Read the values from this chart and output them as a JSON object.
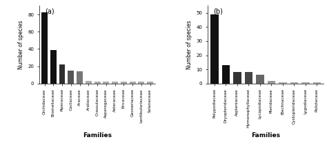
{
  "panel_a": {
    "label": "(a)",
    "categories": [
      "Orchidaceae",
      "Bromeliaceae",
      "Piperaceae",
      "Cactaceae",
      "Araceae",
      "Araliaceae",
      "Crassulaceae",
      "Asparagaceae",
      "Asteraceae",
      "Ericaceae",
      "Gesneriaceae",
      "Lentibulariaceae",
      "Solanaceae"
    ],
    "values": [
      82,
      39,
      22,
      15,
      14,
      3,
      2,
      2,
      2,
      2,
      2,
      2,
      2
    ],
    "colors": [
      "#111111",
      "#111111",
      "#2e2e2e",
      "#555555",
      "#777777",
      "#aaaaaa",
      "#aaaaaa",
      "#aaaaaa",
      "#aaaaaa",
      "#aaaaaa",
      "#aaaaaa",
      "#aaaaaa",
      "#aaaaaa"
    ],
    "ylabel": "Number of species",
    "xlabel": "Families",
    "yticks": [
      0,
      20,
      40,
      60,
      80
    ],
    "yticklabels": [
      "0",
      "20",
      "40",
      "60",
      "80"
    ],
    "ylim": [
      0,
      90
    ]
  },
  "panel_b": {
    "label": "(b)",
    "categories": [
      "Polypodiaceae",
      "Dryopteridaceae",
      "Aspleniaceae",
      "Hymenophyllaceae",
      "Lycopodiaceae",
      "Pteridaceae",
      "Blechnaceae",
      "Cystopleridaceae",
      "Lygodiaceae",
      "Psilotaceae"
    ],
    "values": [
      49,
      13,
      8,
      8,
      6,
      2,
      1,
      1,
      1,
      1
    ],
    "colors": [
      "#111111",
      "#111111",
      "#333333",
      "#444444",
      "#666666",
      "#999999",
      "#aaaaaa",
      "#aaaaaa",
      "#aaaaaa",
      "#aaaaaa"
    ],
    "ylabel": "Number of species",
    "xlabel": "Families",
    "yticks": [
      0,
      10,
      20,
      30,
      40,
      50
    ],
    "yticklabels": [
      "0",
      "10",
      "20",
      "30",
      "40",
      "50"
    ],
    "ylim": [
      0,
      55
    ]
  },
  "fig_width": 4.74,
  "fig_height": 2.1,
  "dpi": 100
}
